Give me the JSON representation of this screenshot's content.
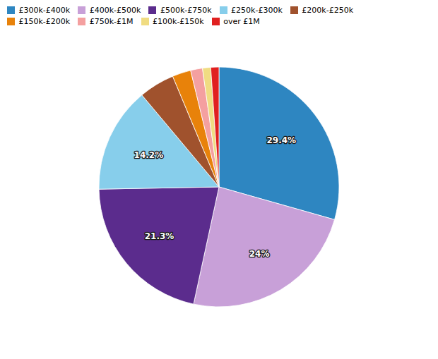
{
  "chart_data": {
    "type": "pie",
    "categories": [
      "£300k-£400k",
      "£400k-£500k",
      "£500k-£750k",
      "£250k-£300k",
      "£200k-£250k",
      "£150k-£200k",
      "£750k-£1M",
      "£100k-£150k",
      "over £1M"
    ],
    "values": [
      29.4,
      24.0,
      21.3,
      14.2,
      4.8,
      2.5,
      1.6,
      1.1,
      1.1
    ],
    "colors": [
      "#2E86C1",
      "#C8A0D8",
      "#5B2C8D",
      "#87CEEB",
      "#A0522D",
      "#E8820A",
      "#F4A0A0",
      "#F0DC82",
      "#E02020"
    ],
    "value_labels": [
      "29.4%",
      "24%",
      "21.3%",
      "14.2%",
      null,
      null,
      null,
      null,
      null
    ],
    "data_labels": true,
    "legend": "top"
  }
}
